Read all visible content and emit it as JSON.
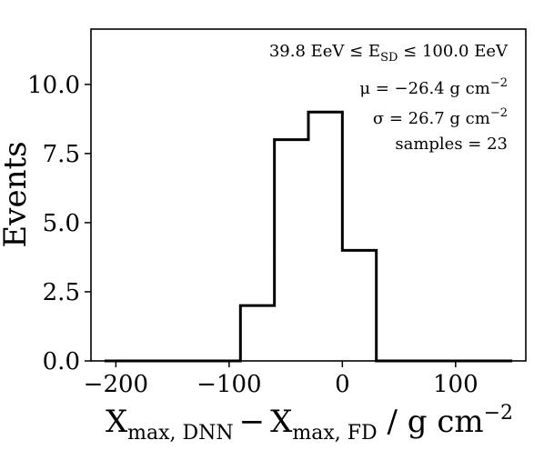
{
  "chart_data": {
    "type": "histogram",
    "bin_edges": [
      -210,
      -180,
      -150,
      -120,
      -90,
      -60,
      -30,
      0,
      30,
      60,
      90,
      120,
      150
    ],
    "counts": [
      0,
      0,
      0,
      0,
      2,
      8,
      9,
      4,
      0,
      0,
      0,
      0
    ],
    "xlim": [
      -222,
      162
    ],
    "ylim": [
      0,
      12
    ],
    "x_ticks": [
      -200,
      -100,
      0,
      100
    ],
    "x_tick_labels": [
      "−200",
      "−100",
      "0",
      "100"
    ],
    "y_ticks": [
      0,
      2.5,
      5,
      7.5,
      10
    ],
    "y_tick_labels": [
      "0.0",
      "2.5",
      "5.0",
      "7.5",
      "10.0"
    ],
    "xlabel": {
      "main1": "X",
      "sub1": "max, DNN",
      "minus": "−",
      "main2": "X",
      "sub2": "max, FD",
      "unit_prefix": " / g cm",
      "unit_exp": "−2"
    },
    "ylabel": "Events",
    "annotations": {
      "energy_left": "39.8 EeV ≤  E",
      "energy_sub": "SD",
      "energy_right": " ≤ 100.0 EeV",
      "mu_prefix": "μ = −26.4 g cm",
      "mu_exp": "−2",
      "sigma_prefix": "σ = 26.7 g cm",
      "sigma_exp": "−2",
      "samples": "samples = 23"
    },
    "grid": false,
    "line_color": "#000000"
  }
}
